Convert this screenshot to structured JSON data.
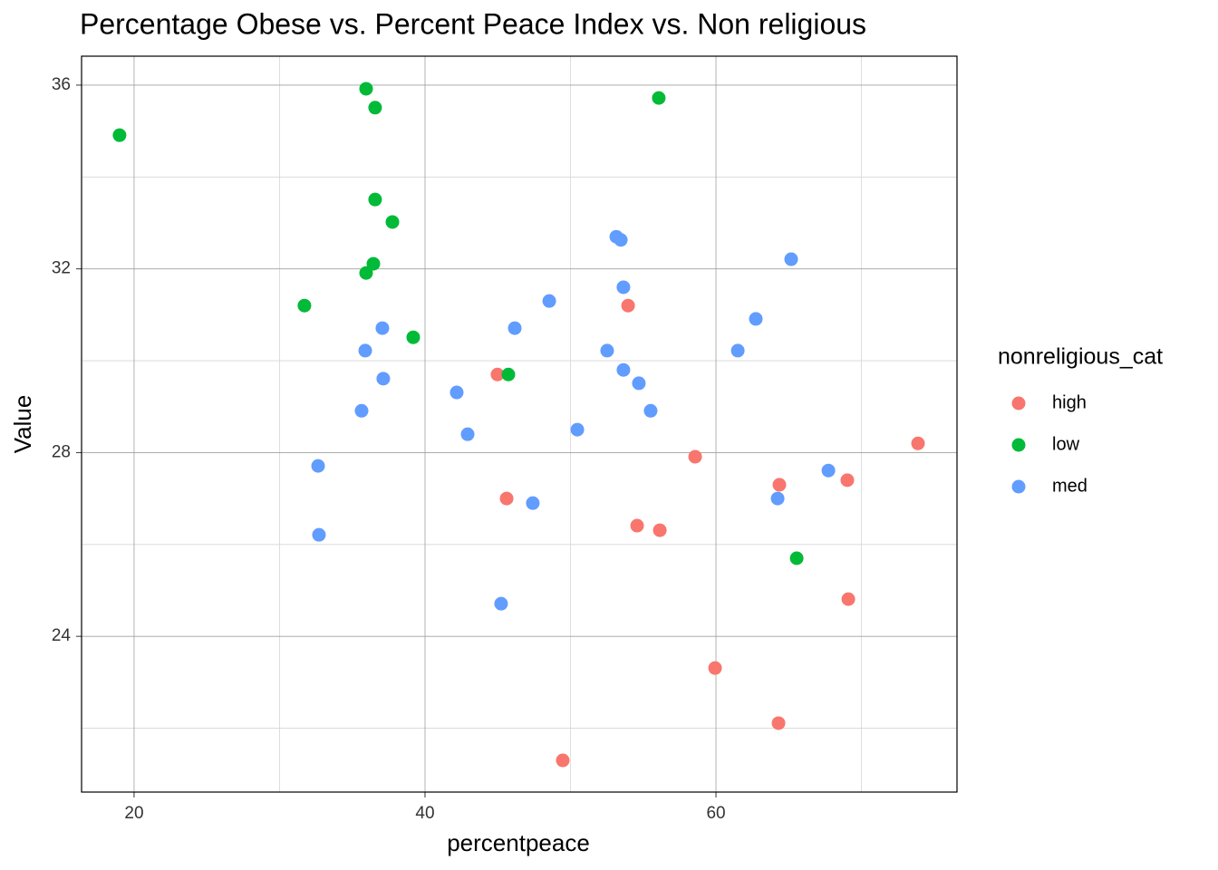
{
  "chart_data": {
    "type": "scatter",
    "title": "Percentage Obese vs. Percent Peace Index vs. Non religious",
    "x_label": "percentpeace",
    "y_label": "Value",
    "legend_title": "nonreligious_cat",
    "legend": "right",
    "grid": true,
    "xlim": [
      16.39,
      76.57
    ],
    "ylim": [
      20.61,
      36.63
    ],
    "xticks": [
      20,
      40,
      60
    ],
    "yticks": [
      24,
      28,
      32,
      36
    ],
    "xminor": [
      30,
      50,
      70
    ],
    "yminor": [
      22,
      26,
      30,
      34
    ],
    "series": [
      {
        "name": "high",
        "color": "#F8766D",
        "x": [
          44.98,
          53.96,
          45.61,
          58.57,
          64.36,
          69.03,
          73.89,
          54.58,
          56.14,
          69.1,
          59.94,
          64.3,
          49.47
        ],
        "values": [
          29.7,
          31.2,
          27.0,
          27.91,
          27.3,
          27.4,
          28.2,
          26.41,
          26.31,
          24.81,
          23.31,
          22.11,
          21.3
        ]
      },
      {
        "name": "low",
        "color": "#00BA38",
        "x": [
          19.0,
          35.95,
          36.57,
          56.07,
          36.57,
          37.76,
          36.45,
          35.95,
          31.71,
          39.19,
          45.73,
          65.55
        ],
        "values": [
          34.91,
          35.92,
          35.51,
          35.72,
          33.51,
          33.02,
          32.11,
          31.91,
          31.2,
          30.51,
          29.7,
          25.7
        ]
      },
      {
        "name": "med",
        "color": "#619CFF",
        "x": [
          53.15,
          53.46,
          65.17,
          53.64,
          48.54,
          62.74,
          37.07,
          46.17,
          35.89,
          52.52,
          61.5,
          53.64,
          37.13,
          54.7,
          42.18,
          35.64,
          55.51,
          50.47,
          42.93,
          32.65,
          67.73,
          64.24,
          47.41,
          32.71,
          45.23
        ],
        "values": [
          32.7,
          32.63,
          32.21,
          31.6,
          31.3,
          30.91,
          30.71,
          30.71,
          30.22,
          30.22,
          30.22,
          29.8,
          29.61,
          29.51,
          29.31,
          28.91,
          28.91,
          28.5,
          28.4,
          27.71,
          27.61,
          27.0,
          26.9,
          26.21,
          24.71
        ]
      }
    ]
  }
}
